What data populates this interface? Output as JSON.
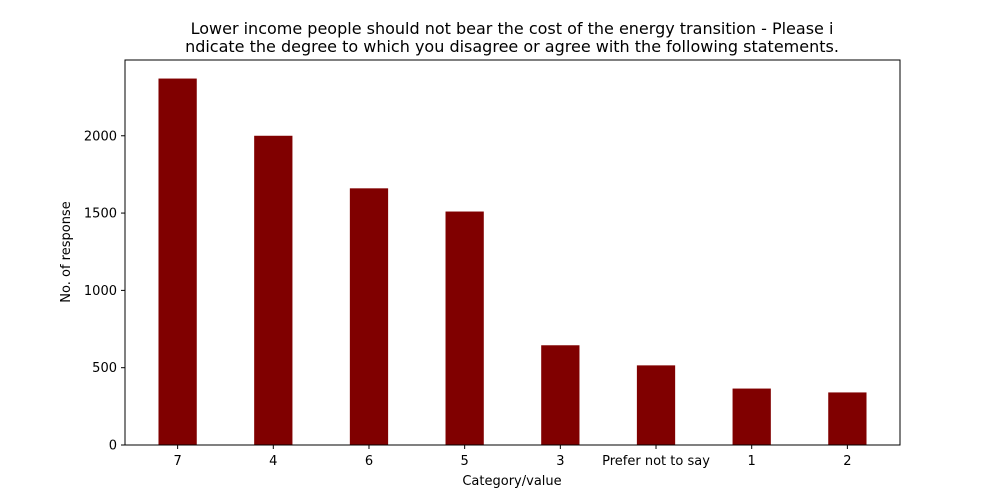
{
  "chart_data": {
    "type": "bar",
    "title_lines": [
      "Lower income people should not bear the cost of the energy transition - Please i",
      "ndicate the degree to which you disagree or agree with the following statements."
    ],
    "xlabel": "Category/value",
    "ylabel": "No. of response",
    "categories": [
      "7",
      "4",
      "6",
      "5",
      "3",
      "Prefer not to say",
      "1",
      "2"
    ],
    "values": [
      2370,
      2000,
      1660,
      1510,
      645,
      515,
      365,
      340
    ],
    "ylim": [
      0,
      2490
    ],
    "yticks": [
      0,
      500,
      1000,
      1500,
      2000
    ],
    "bar_color": "#800000",
    "grid": false
  }
}
